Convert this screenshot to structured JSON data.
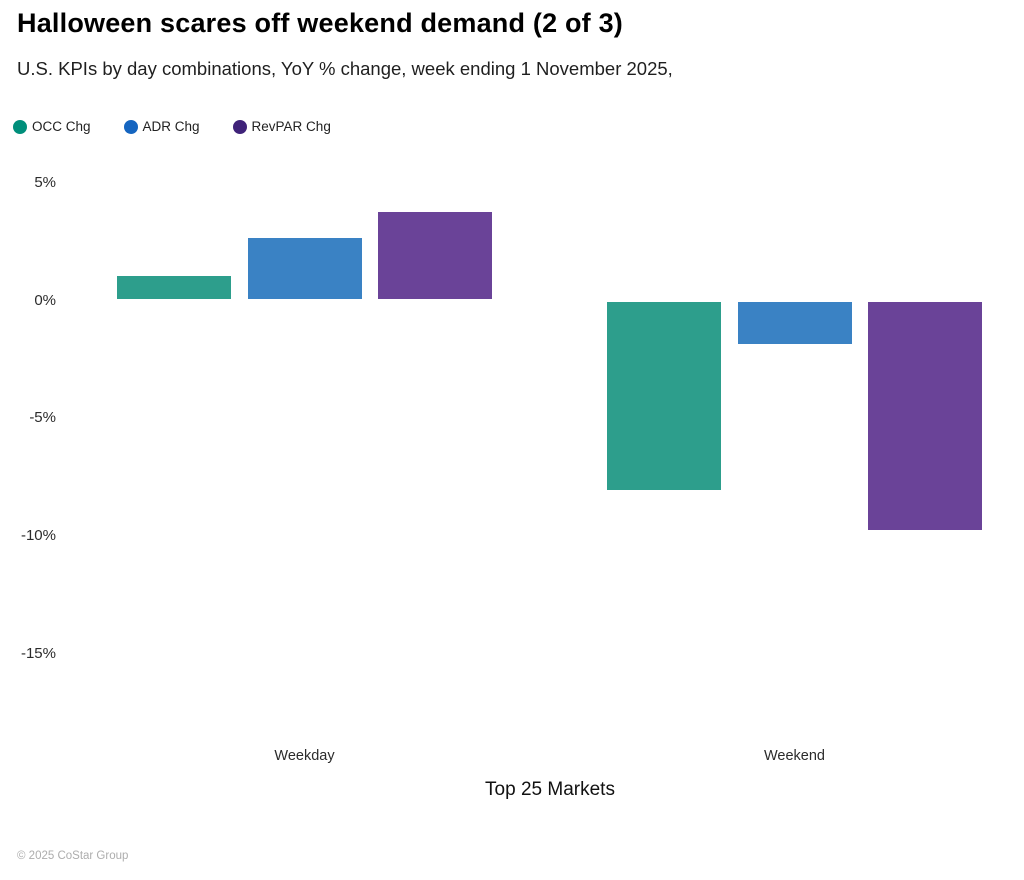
{
  "header": {
    "title": "Halloween scares off weekend demand (2 of 3)",
    "subtitle": "U.S. KPIs by day combinations, YoY % change, week ending 1 November 2025,"
  },
  "legend": {
    "items": [
      {
        "label": "OCC Chg",
        "color": "#008f7b"
      },
      {
        "label": "ADR Chg",
        "color": "#1565c0"
      },
      {
        "label": "RevPAR Chg",
        "color": "#3f2279"
      }
    ]
  },
  "chart_data": {
    "type": "bar",
    "title": "Halloween scares off weekend demand (2 of 3)",
    "subtitle": "U.S. KPIs by day combinations, YoY % change, week ending 1 November 2025,",
    "categories": [
      "Weekday",
      "Weekend"
    ],
    "series": [
      {
        "name": "OCC Chg",
        "color": "#2d9e8c",
        "values": [
          1.0,
          -8.0
        ]
      },
      {
        "name": "ADR Chg",
        "color": "#3a82c4",
        "values": [
          2.6,
          -1.8
        ]
      },
      {
        "name": "RevPAR Chg",
        "color": "#6a4398",
        "values": [
          3.7,
          -9.7
        ]
      }
    ],
    "xlabel": "Top 25 Markets",
    "ylabel": "",
    "y_ticks": [
      5,
      0,
      -5,
      -10,
      -15
    ],
    "y_tick_suffix": "%",
    "ylim": [
      -17.5,
      6
    ],
    "grid": false,
    "legend_position": "top-left",
    "value_unit": "YoY % change"
  },
  "footer": {
    "copyright": "© 2025 CoStar Group"
  }
}
